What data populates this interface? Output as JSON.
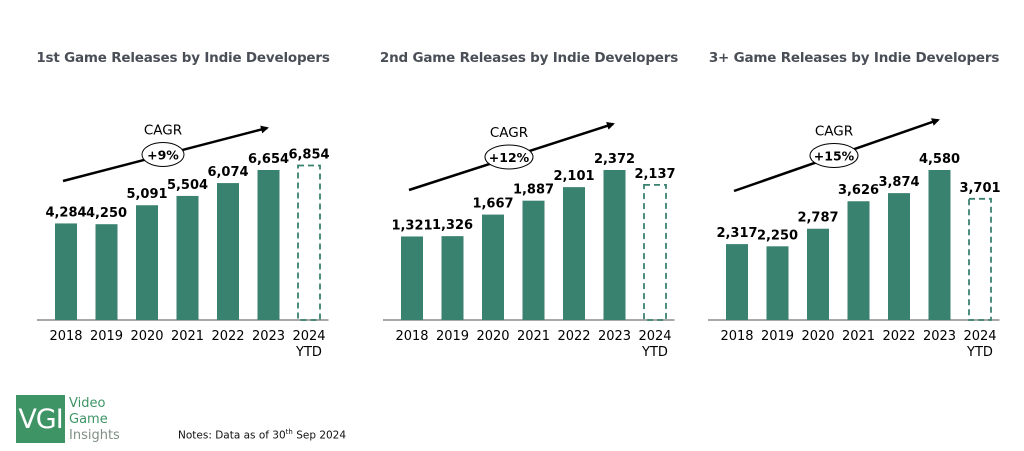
{
  "logo": {
    "mark": "VGI",
    "lines": [
      "Video",
      "Game",
      "Insights"
    ],
    "color": "#3f9466"
  },
  "notes": {
    "prefix": "Notes: Data as of 30",
    "superscript": "th",
    "suffix": " Sep 2024"
  },
  "colors": {
    "bar": "#3a8270",
    "projected_outline": "#3a8270",
    "axis": "#8c8c8c",
    "arrow": "#000000"
  },
  "chart_data": [
    {
      "type": "bar",
      "title": "1st Game Releases by Indie Developers",
      "categories": [
        "2018",
        "2019",
        "2020",
        "2021",
        "2022",
        "2023",
        "2024 YTD"
      ],
      "values": [
        4284,
        4250,
        5091,
        5504,
        6074,
        6654,
        6854
      ],
      "labels": [
        "4,284",
        "4,250",
        "5,091",
        "5,504",
        "6,074",
        "6,654",
        "6,854"
      ],
      "projected": [
        false,
        false,
        false,
        false,
        false,
        false,
        true
      ],
      "cagr_label": "CAGR",
      "cagr_value": "+9%",
      "xlabel": "",
      "ylabel": "",
      "ylim": [
        0,
        6654
      ],
      "grid": false
    },
    {
      "type": "bar",
      "title": "2nd Game Releases by Indie Developers",
      "categories": [
        "2018",
        "2019",
        "2020",
        "2021",
        "2022",
        "2023",
        "2024 YTD"
      ],
      "values": [
        1321,
        1326,
        1667,
        1887,
        2101,
        2372,
        2137
      ],
      "labels": [
        "1,321",
        "1,326",
        "1,667",
        "1,887",
        "2,101",
        "2,372",
        "2,137"
      ],
      "projected": [
        false,
        false,
        false,
        false,
        false,
        false,
        true
      ],
      "cagr_label": "CAGR",
      "cagr_value": "+12%",
      "xlabel": "",
      "ylabel": "",
      "ylim": [
        0,
        2372
      ],
      "grid": false
    },
    {
      "type": "bar",
      "title": "3+ Game Releases by Indie Developers",
      "categories": [
        "2018",
        "2019",
        "2020",
        "2021",
        "2022",
        "2023",
        "2024 YTD"
      ],
      "values": [
        2317,
        2250,
        2787,
        3626,
        3874,
        4580,
        3701
      ],
      "labels": [
        "2,317",
        "2,250",
        "2,787",
        "3,626",
        "3,874",
        "4,580",
        "3,701"
      ],
      "projected": [
        false,
        false,
        false,
        false,
        false,
        false,
        true
      ],
      "cagr_label": "CAGR",
      "cagr_value": "+15%",
      "xlabel": "",
      "ylabel": "",
      "ylim": [
        0,
        4580
      ],
      "grid": false
    }
  ]
}
